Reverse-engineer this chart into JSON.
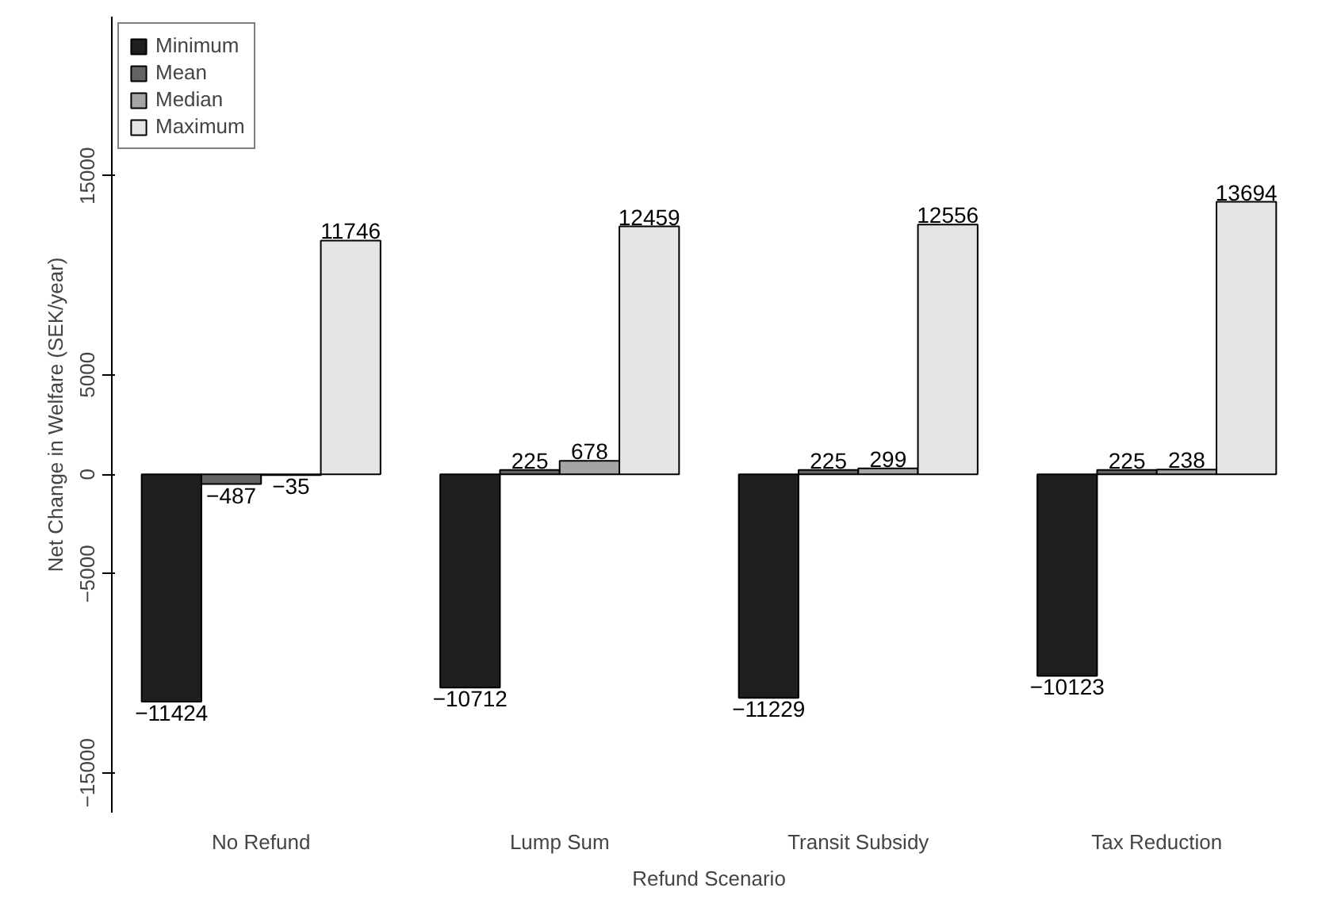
{
  "chart_data": {
    "type": "bar",
    "xlabel": "Refund Scenario",
    "ylabel": "Net Change in Welfare (SEK/year)",
    "categories": [
      "No Refund",
      "Lump Sum",
      "Transit Subsidy",
      "Tax Reduction"
    ],
    "series": [
      {
        "name": "Minimum",
        "color": "#1f1f1f",
        "values": [
          -11424,
          -10712,
          -11229,
          -10123
        ],
        "value_labels": [
          "−11424",
          "−10712",
          "−11229",
          "−10123"
        ]
      },
      {
        "name": "Mean",
        "color": "#636363",
        "values": [
          -487,
          225,
          225,
          225
        ],
        "value_labels": [
          "−487",
          "225",
          "225",
          "225"
        ]
      },
      {
        "name": "Median",
        "color": "#a5a5a5",
        "values": [
          -35,
          678,
          299,
          238
        ],
        "value_labels": [
          "−35",
          "678",
          "299",
          "238"
        ]
      },
      {
        "name": "Maximum",
        "color": "#e5e5e5",
        "values": [
          11746,
          12459,
          12556,
          13694
        ],
        "value_labels": [
          "11746",
          "12459",
          "12556",
          "13694"
        ]
      }
    ],
    "ylim": [
      -17000,
      23000
    ],
    "yticks": [
      {
        "value": -15000,
        "label": "−15000"
      },
      {
        "value": -5000,
        "label": "−5000"
      },
      0,
      5000,
      15000
    ],
    "grid": false,
    "legend": "top left"
  }
}
